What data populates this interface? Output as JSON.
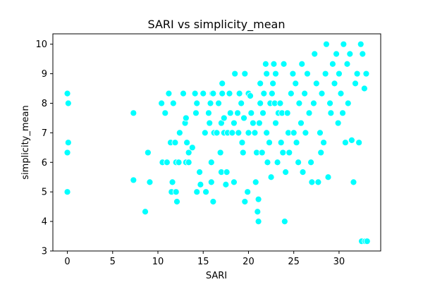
{
  "chart_data": {
    "type": "scatter",
    "title": "SARI vs simplicity_mean",
    "xlabel": "SARI",
    "ylabel": "simplicity_mean",
    "xlim": [
      -1.6,
      34.6
    ],
    "ylim": [
      3.0,
      10.35
    ],
    "xticks": [
      0,
      5,
      10,
      15,
      20,
      25,
      30
    ],
    "yticks": [
      3,
      4,
      5,
      6,
      7,
      8,
      9,
      10
    ],
    "grid": false,
    "legend": "none",
    "color": "#00ffff",
    "edgecolor": "#ffffff",
    "series": [
      {
        "points": [
          [
            0.0,
            8.33
          ],
          [
            0.1,
            8.0
          ],
          [
            0.1,
            6.67
          ],
          [
            0.0,
            6.33
          ],
          [
            0.0,
            5.0
          ],
          [
            7.3,
            7.67
          ],
          [
            7.3,
            5.4
          ],
          [
            8.6,
            4.33
          ],
          [
            8.9,
            6.33
          ],
          [
            9.1,
            5.33
          ],
          [
            10.4,
            8.0
          ],
          [
            10.5,
            6.0
          ],
          [
            10.8,
            7.67
          ],
          [
            11.0,
            6.0
          ],
          [
            11.2,
            8.33
          ],
          [
            11.4,
            6.67
          ],
          [
            11.5,
            5.0
          ],
          [
            11.6,
            5.33
          ],
          [
            11.7,
            8.0
          ],
          [
            11.9,
            6.67
          ],
          [
            12.0,
            6.0
          ],
          [
            12.0,
            5.0
          ],
          [
            12.1,
            4.67
          ],
          [
            12.3,
            6.0
          ],
          [
            12.4,
            7.0
          ],
          [
            12.8,
            8.33
          ],
          [
            13.0,
            7.33
          ],
          [
            13.1,
            7.5
          ],
          [
            13.1,
            6.0
          ],
          [
            13.2,
            6.67
          ],
          [
            13.4,
            6.33
          ],
          [
            13.4,
            6.0
          ],
          [
            13.8,
            6.5
          ],
          [
            14.1,
            8.33
          ],
          [
            14.2,
            7.67
          ],
          [
            14.3,
            8.0
          ],
          [
            14.3,
            5.0
          ],
          [
            14.6,
            5.67
          ],
          [
            14.7,
            5.25
          ],
          [
            15.0,
            8.33
          ],
          [
            15.2,
            7.0
          ],
          [
            15.3,
            5.0
          ],
          [
            15.6,
            7.67
          ],
          [
            15.7,
            7.33
          ],
          [
            15.8,
            8.0
          ],
          [
            15.9,
            6.0
          ],
          [
            15.9,
            5.33
          ],
          [
            16.0,
            8.33
          ],
          [
            16.1,
            8.33
          ],
          [
            16.1,
            4.67
          ],
          [
            16.2,
            7.0
          ],
          [
            16.5,
            7.0
          ],
          [
            16.7,
            8.0
          ],
          [
            16.9,
            6.33
          ],
          [
            17.0,
            7.33
          ],
          [
            17.0,
            5.67
          ],
          [
            17.1,
            8.33
          ],
          [
            17.1,
            8.67
          ],
          [
            17.3,
            7.0
          ],
          [
            17.3,
            7.5
          ],
          [
            17.5,
            5.25
          ],
          [
            17.6,
            5.67
          ],
          [
            17.7,
            7.0
          ],
          [
            17.9,
            8.33
          ],
          [
            18.0,
            7.67
          ],
          [
            18.2,
            7.0
          ],
          [
            18.4,
            7.33
          ],
          [
            18.4,
            5.33
          ],
          [
            18.5,
            9.0
          ],
          [
            18.8,
            7.67
          ],
          [
            18.9,
            7.0
          ],
          [
            19.0,
            8.33
          ],
          [
            19.2,
            8.0
          ],
          [
            19.3,
            6.67
          ],
          [
            19.4,
            6.33
          ],
          [
            19.5,
            7.5
          ],
          [
            19.6,
            4.67
          ],
          [
            19.6,
            9.0
          ],
          [
            19.9,
            5.0
          ],
          [
            20.0,
            8.33
          ],
          [
            20.0,
            7.0
          ],
          [
            20.2,
            8.25
          ],
          [
            20.3,
            7.67
          ],
          [
            20.5,
            7.33
          ],
          [
            20.7,
            7.0
          ],
          [
            20.8,
            5.33
          ],
          [
            20.9,
            6.33
          ],
          [
            21.0,
            4.33
          ],
          [
            21.1,
            4.75
          ],
          [
            21.1,
            4.0
          ],
          [
            21.2,
            7.33
          ],
          [
            21.3,
            8.0
          ],
          [
            21.3,
            8.67
          ],
          [
            21.5,
            6.33
          ],
          [
            21.6,
            7.67
          ],
          [
            21.7,
            8.33
          ],
          [
            21.9,
            9.33
          ],
          [
            22.0,
            9.0
          ],
          [
            22.0,
            7.0
          ],
          [
            22.1,
            6.0
          ],
          [
            22.3,
            6.67
          ],
          [
            22.4,
            8.0
          ],
          [
            22.5,
            5.5
          ],
          [
            22.6,
            8.33
          ],
          [
            22.7,
            8.67
          ],
          [
            22.8,
            9.33
          ],
          [
            22.9,
            8.0
          ],
          [
            23.0,
            7.33
          ],
          [
            23.0,
            9.0
          ],
          [
            23.2,
            6.0
          ],
          [
            23.3,
            7.67
          ],
          [
            23.5,
            8.0
          ],
          [
            23.6,
            6.67
          ],
          [
            23.7,
            7.67
          ],
          [
            23.8,
            6.33
          ],
          [
            23.9,
            9.33
          ],
          [
            24.0,
            4.0
          ],
          [
            24.1,
            5.67
          ],
          [
            24.3,
            7.67
          ],
          [
            24.4,
            7.0
          ],
          [
            24.5,
            6.33
          ],
          [
            24.7,
            8.33
          ],
          [
            24.9,
            9.0
          ],
          [
            25.0,
            7.0
          ],
          [
            25.2,
            8.67
          ],
          [
            25.3,
            6.67
          ],
          [
            25.5,
            6.0
          ],
          [
            25.6,
            8.0
          ],
          [
            25.8,
            7.33
          ],
          [
            25.9,
            9.33
          ],
          [
            26.0,
            5.67
          ],
          [
            26.2,
            8.33
          ],
          [
            26.3,
            7.0
          ],
          [
            26.5,
            9.0
          ],
          [
            26.7,
            7.67
          ],
          [
            26.9,
            6.0
          ],
          [
            27.0,
            5.33
          ],
          [
            27.2,
            8.0
          ],
          [
            27.3,
            9.67
          ],
          [
            27.5,
            8.67
          ],
          [
            27.7,
            5.33
          ],
          [
            27.9,
            7.0
          ],
          [
            28.0,
            6.33
          ],
          [
            28.1,
            8.33
          ],
          [
            28.3,
            6.67
          ],
          [
            28.5,
            9.0
          ],
          [
            28.6,
            10.0
          ],
          [
            28.8,
            5.5
          ],
          [
            29.0,
            8.0
          ],
          [
            29.1,
            7.67
          ],
          [
            29.3,
            9.33
          ],
          [
            29.5,
            8.67
          ],
          [
            29.7,
            9.67
          ],
          [
            29.9,
            7.33
          ],
          [
            30.0,
            9.0
          ],
          [
            30.2,
            8.33
          ],
          [
            30.4,
            7.67
          ],
          [
            30.5,
            10.0
          ],
          [
            30.7,
            6.67
          ],
          [
            30.9,
            9.33
          ],
          [
            31.0,
            8.0
          ],
          [
            31.2,
            9.67
          ],
          [
            31.4,
            6.75
          ],
          [
            31.6,
            5.33
          ],
          [
            31.8,
            8.67
          ],
          [
            32.0,
            9.0
          ],
          [
            32.2,
            6.67
          ],
          [
            32.4,
            10.0
          ],
          [
            32.5,
            3.33
          ],
          [
            32.6,
            9.67
          ],
          [
            32.8,
            8.5
          ],
          [
            32.9,
            3.33
          ],
          [
            33.0,
            9.0
          ],
          [
            33.1,
            3.33
          ]
        ]
      }
    ]
  }
}
